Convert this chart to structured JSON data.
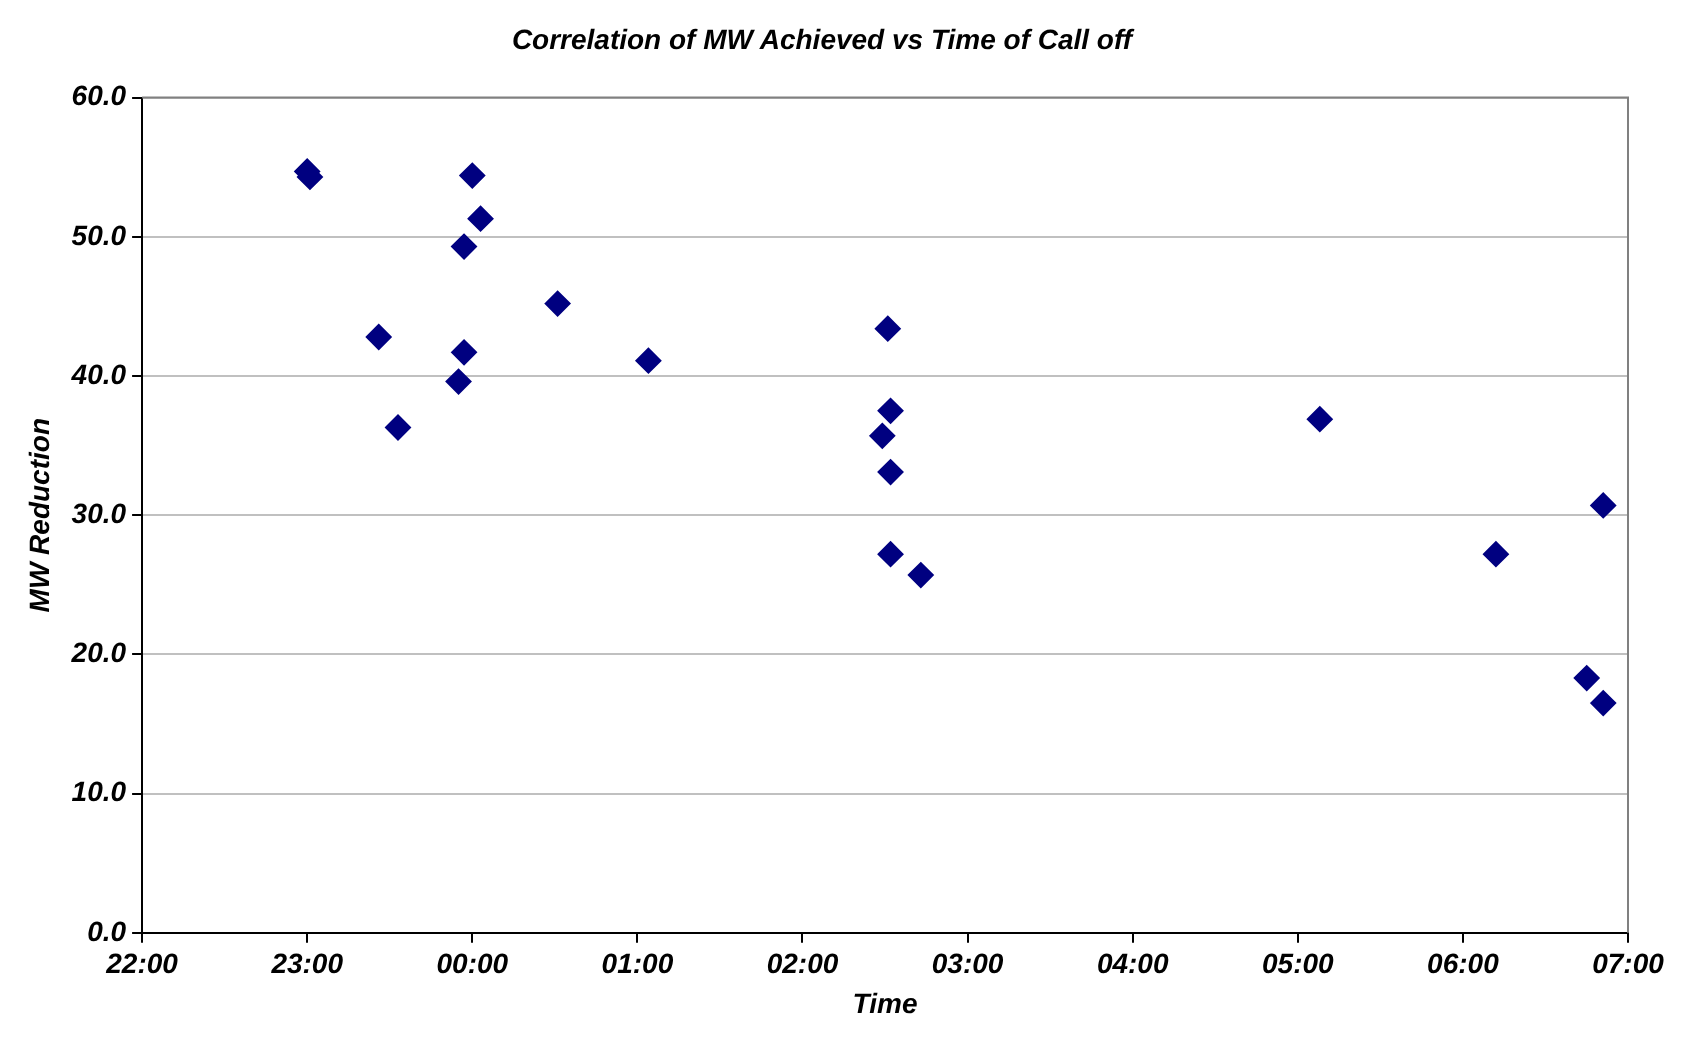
{
  "chart_data": {
    "type": "scatter",
    "title": "Correlation of MW Achieved vs Time of Call off",
    "xlabel": "Time",
    "ylabel": "MW Reduction",
    "x": [
      "--01-01T23:00",
      "--01-01T23:01",
      "--01-01T23:26",
      "--01-01T23:33",
      "--01-01T23:57",
      "--01-01T23:57",
      "--01-01T23:55",
      "--01-02T00:00",
      "--01-02T00:03",
      "--01-02T00:31",
      "--01-02T01:04",
      "--01-02T02:31",
      "--01-02T02:32",
      "--01-02T02:29",
      "--01-02T02:32",
      "--01-02T02:32",
      "--01-02T02:43",
      "--01-02T05:08",
      "--01-02T06:12",
      "--01-02T06:45",
      "--01-02T06:51",
      "--01-02T06:51"
    ],
    "series": [
      {
        "color": "#000080",
        "values": [
          54.7,
          54.3,
          42.8,
          36.3,
          49.3,
          41.7,
          39.6,
          54.4,
          51.3,
          45.2,
          41.1,
          43.4,
          37.5,
          35.7,
          33.1,
          27.2,
          25.7,
          36.9,
          27.2,
          18.3,
          16.5,
          30.7
        ]
      }
    ],
    "xlim": [
      "--01-01T22:00",
      "--01-02T07:00"
    ],
    "ylim": [
      0,
      60
    ],
    "xticks": [
      {
        "value": "--01-01T22:00",
        "label": "22:00"
      },
      {
        "value": "--01-01T23:00",
        "label": "23:00"
      },
      {
        "value": "--01-02T00:00",
        "label": "00:00"
      },
      {
        "value": "--01-02T01:00",
        "label": "01:00"
      },
      {
        "value": "--01-02T02:00",
        "label": "02:00"
      },
      {
        "value": "--01-02T03:00",
        "label": "03:00"
      },
      {
        "value": "--01-02T04:00",
        "label": "04:00"
      },
      {
        "value": "--01-02T05:00",
        "label": "05:00"
      },
      {
        "value": "--01-02T06:00",
        "label": "06:00"
      },
      {
        "value": "--01-02T07:00",
        "label": "07:00"
      }
    ],
    "yticks": [
      {
        "value": 0,
        "label": "0.0"
      },
      {
        "value": 10,
        "label": "10.0"
      },
      {
        "value": 20,
        "label": "20.0"
      },
      {
        "value": 30,
        "label": "30.0"
      },
      {
        "value": 40,
        "label": "40.0"
      },
      {
        "value": 50,
        "label": "50.0"
      },
      {
        "value": 60,
        "label": "60.0"
      }
    ],
    "grid": "y",
    "legend": false,
    "marker": "diamond"
  }
}
